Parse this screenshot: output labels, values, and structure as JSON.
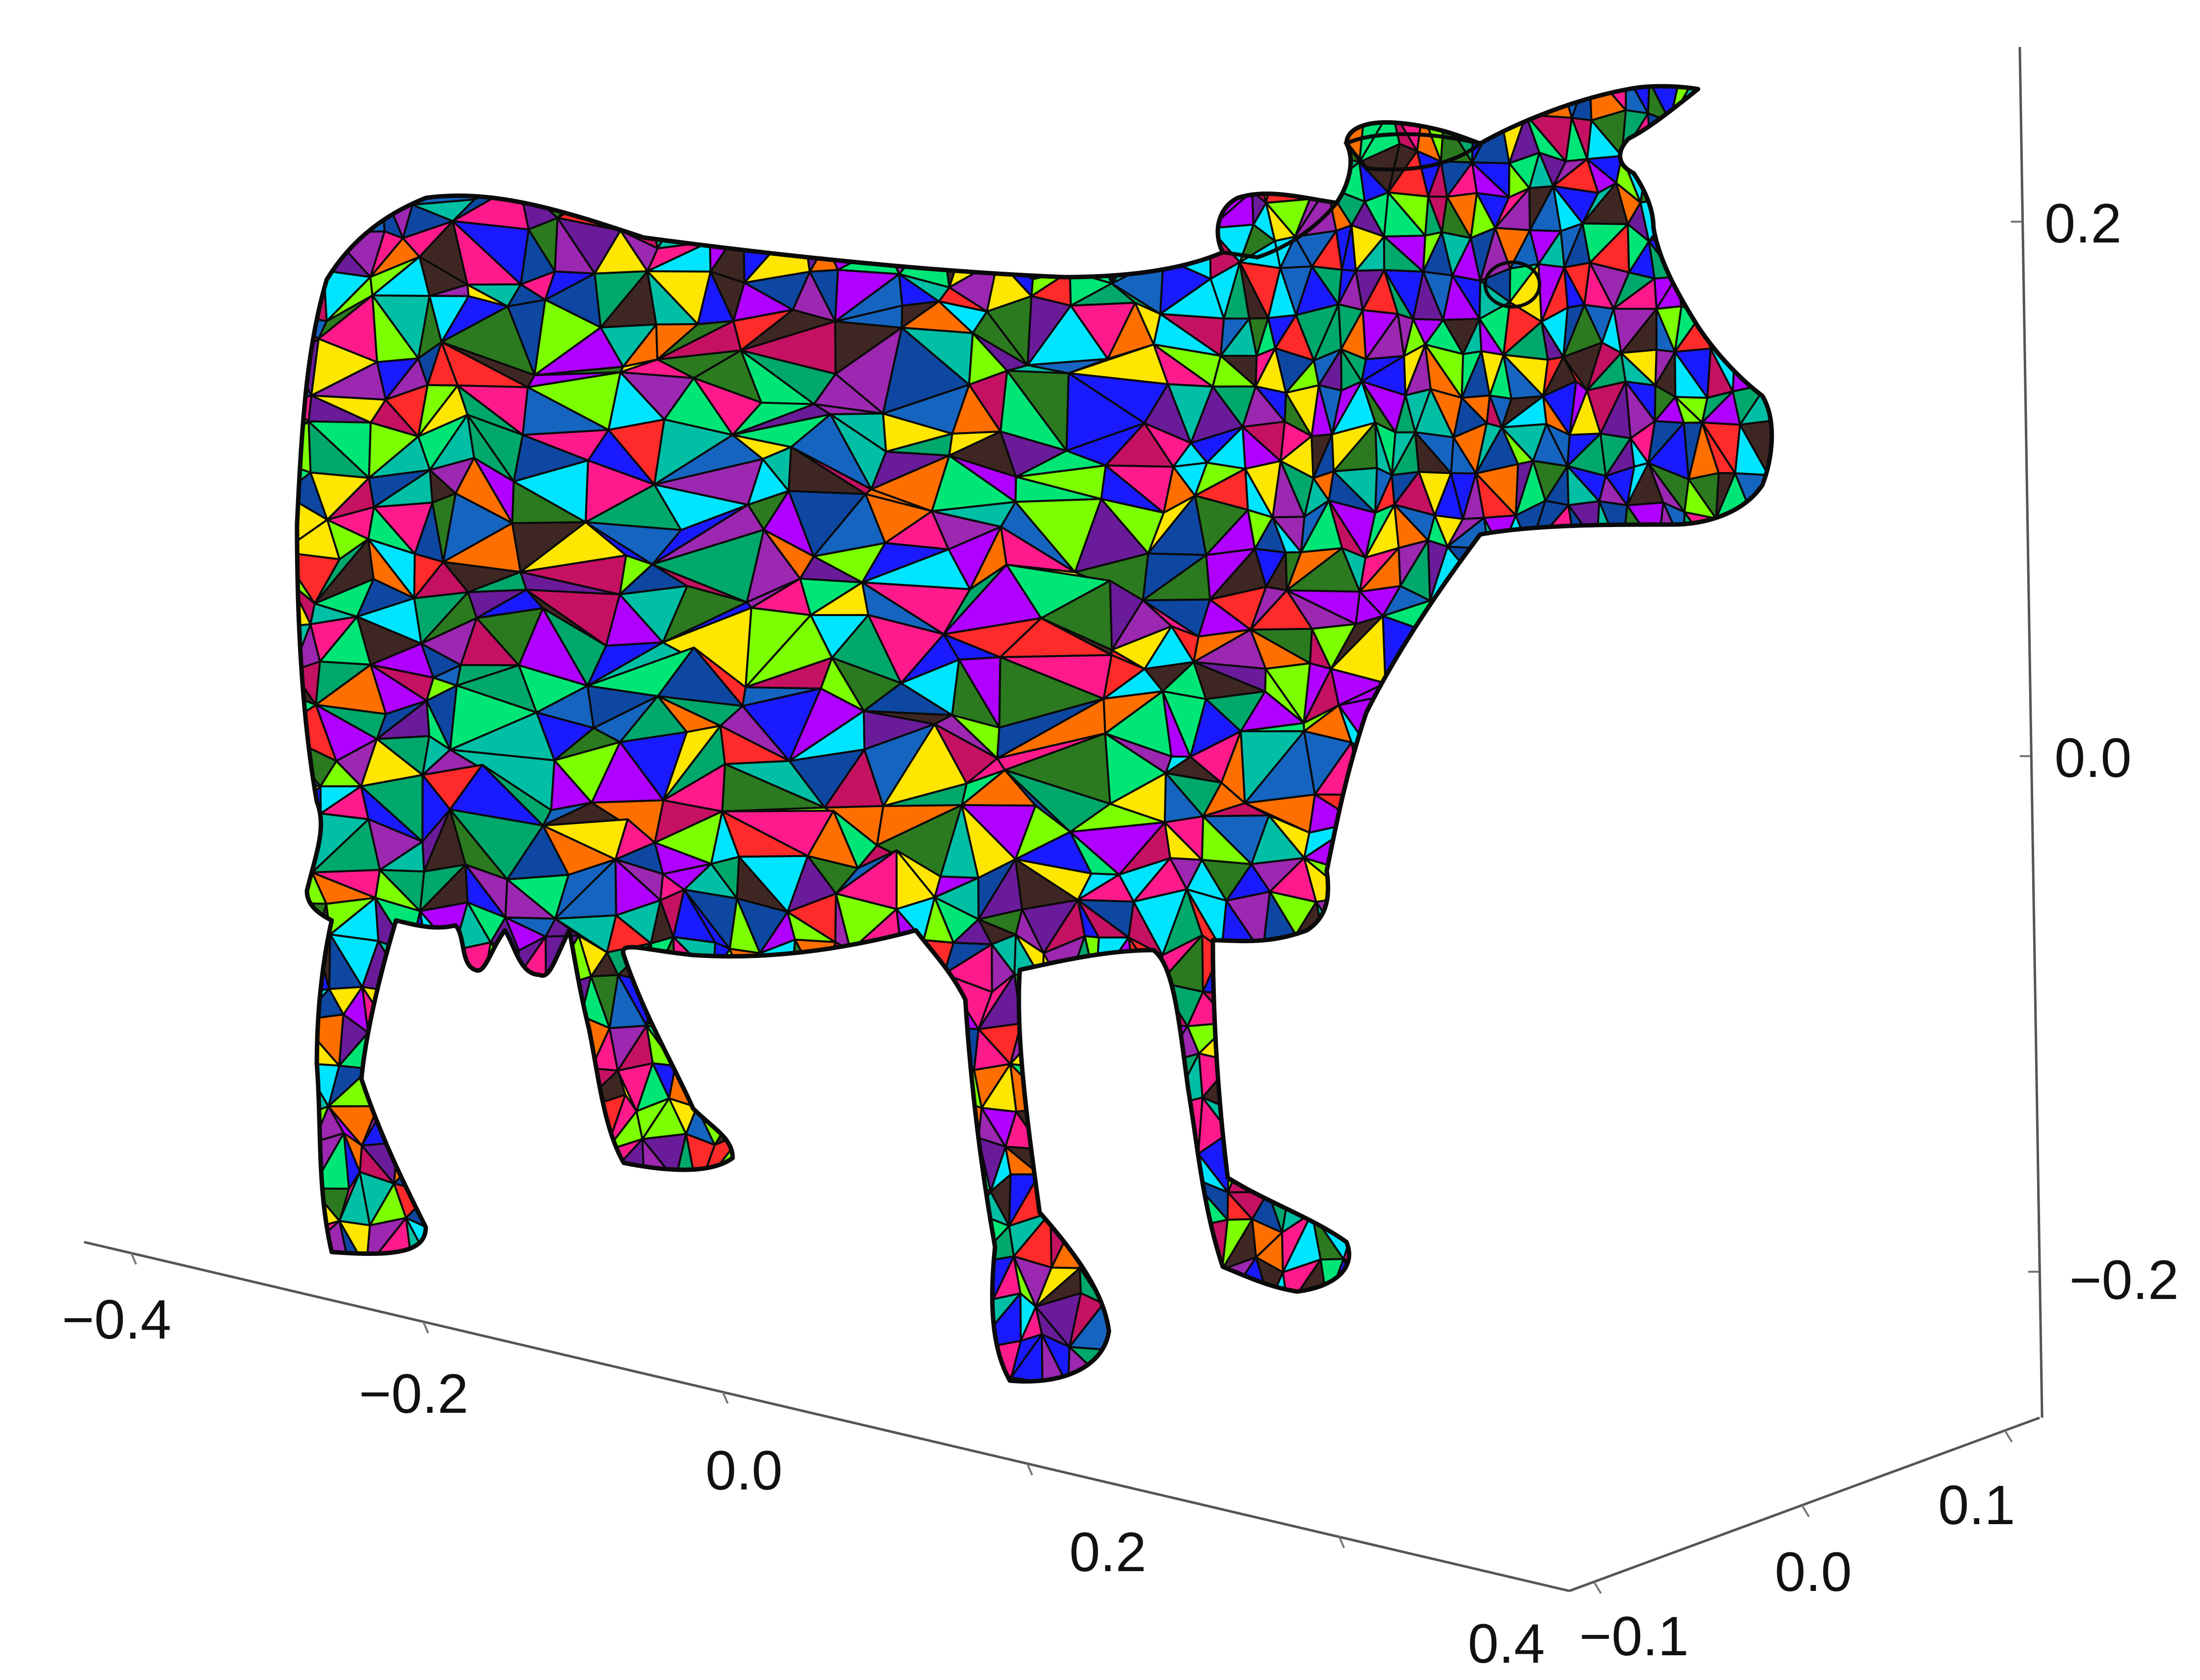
{
  "figure": {
    "type": "3d-mesh-plot",
    "subject": "cow-mesh",
    "mesh_style": {
      "edge_color": "#0a0a0a",
      "palette": [
        "#ff1a8c",
        "#00e676",
        "#1a1aff",
        "#b000ff",
        "#00e5ff",
        "#ffe600",
        "#ff2a2a",
        "#2b7a1f",
        "#6a1b9a",
        "#0d47a1",
        "#00a86b",
        "#ff6f00",
        "#7cff00",
        "#c51162",
        "#1565c0",
        "#3e2723",
        "#9c27b0",
        "#00bfa5"
      ]
    }
  },
  "axes": {
    "x": {
      "ticks": [
        "−0.4",
        "−0.2",
        "0.0",
        "0.2",
        "0.4"
      ]
    },
    "y": {
      "ticks": [
        "−0.1",
        "0.0",
        "0.1"
      ]
    },
    "z": {
      "ticks": [
        "−0.2",
        "0.0",
        "0.2"
      ]
    },
    "line_color": "#555555"
  }
}
